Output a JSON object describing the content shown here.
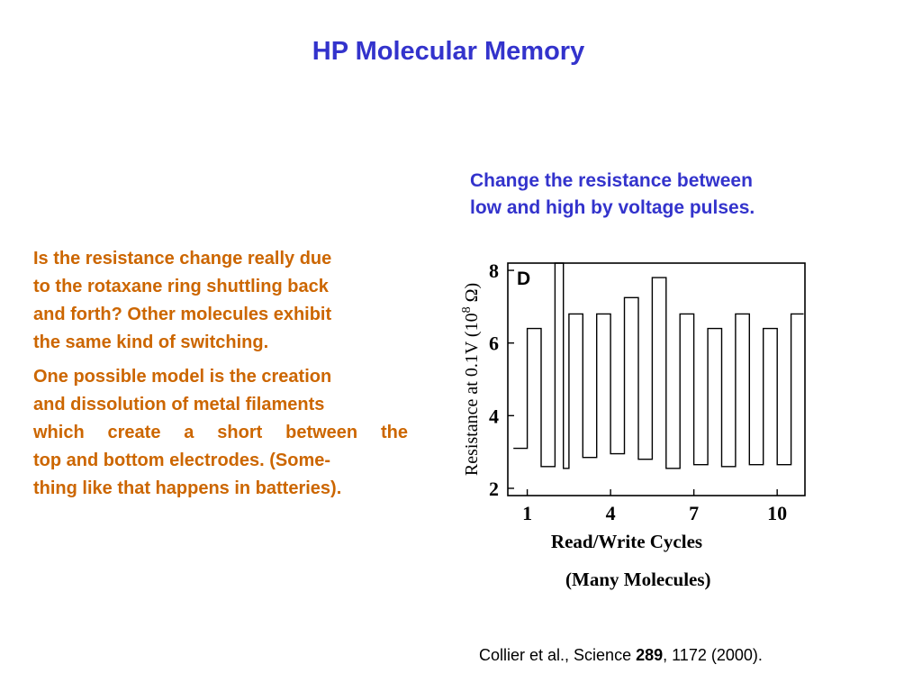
{
  "slide": {
    "title": "HP Molecular Memory",
    "description_lines": [
      "Change the resistance between",
      "low and high by voltage pulses."
    ],
    "question_lines": [
      "Is the resistance change really due",
      "to the rotaxane ring shuttling  back",
      "and forth? Other molecules exhibit",
      "the same kind of switching."
    ],
    "model_lines": [
      "One possible model is the creation",
      "and dissolution of metal filaments",
      "which  create a  short  between  the",
      "top and bottom electrodes. (Some-",
      "thing like that happens in batteries)."
    ],
    "caption": "(Many Molecules)",
    "citation": {
      "prefix": "Collier et al., Science ",
      "volume": "289",
      "suffix": ", 1172 (2000)."
    }
  },
  "colors": {
    "title": "#3333cc",
    "body_text": "#cc6600",
    "trace": "#000000"
  },
  "chart_data": {
    "type": "line",
    "panel_label": "D",
    "xlabel": "Read/Write Cycles",
    "ylabel_prefix": "Resistance at 0.1V (10",
    "ylabel_exponent": "8",
    "ylabel_suffix": " Ω)",
    "x_ticks": [
      1,
      4,
      7,
      10
    ],
    "y_ticks": [
      2,
      4,
      6,
      8
    ],
    "xlim": [
      0.3,
      11.0
    ],
    "ylim": [
      1.8,
      8.2
    ],
    "grid": false,
    "series": [
      {
        "x": [
          0.5,
          1.0,
          1.0,
          1.5,
          1.5,
          2.0,
          2.0,
          2.3,
          2.3,
          2.5,
          2.5,
          3.0,
          3.0,
          3.5,
          3.5,
          4.0,
          4.0,
          4.5,
          4.5,
          5.0,
          5.0,
          5.5,
          5.5,
          6.0,
          6.0,
          6.5,
          6.5,
          7.0,
          7.0,
          7.5,
          7.5,
          8.0,
          8.0,
          8.5,
          8.5,
          9.0,
          9.0,
          9.5,
          9.5,
          10.0,
          10.0,
          10.5,
          10.5,
          10.95
        ],
        "y": [
          3.1,
          3.1,
          6.4,
          6.4,
          2.6,
          2.6,
          8.2,
          8.2,
          2.55,
          2.55,
          6.8,
          6.8,
          2.85,
          2.85,
          6.8,
          6.8,
          2.95,
          2.95,
          7.25,
          7.25,
          2.8,
          2.8,
          7.8,
          7.8,
          2.55,
          2.55,
          6.8,
          6.8,
          2.65,
          2.65,
          6.4,
          6.4,
          2.6,
          2.6,
          6.8,
          6.8,
          2.65,
          2.65,
          6.4,
          6.4,
          2.65,
          2.65,
          6.8,
          6.8
        ]
      }
    ]
  }
}
